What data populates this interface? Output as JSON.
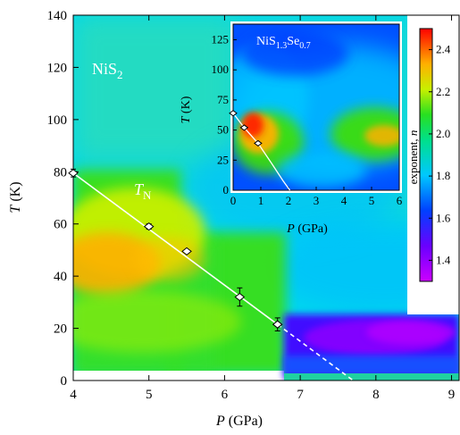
{
  "chart_data": [
    {
      "type": "heatmap",
      "title": "NiS2",
      "xlabel": "P  (GPa)",
      "ylabel": "T (K)",
      "xlim": [
        4,
        9.1
      ],
      "ylim": [
        0,
        140
      ],
      "xticks": [
        "4",
        "5",
        "6",
        "7",
        "8",
        "9"
      ],
      "yticks": [
        "0",
        "20",
        "40",
        "60",
        "80",
        "100",
        "120",
        "140"
      ],
      "annotation": "T_N",
      "series": [
        {
          "name": "T_N",
          "points": [
            {
              "x": 4.0,
              "y": 79.5,
              "err": 1.5
            },
            {
              "x": 5.0,
              "y": 59,
              "err": 1
            },
            {
              "x": 5.5,
              "y": 49.5,
              "err": 0.5
            },
            {
              "x": 6.2,
              "y": 32,
              "err": 3.5
            },
            {
              "x": 6.7,
              "y": 21.5,
              "err": 2.5
            }
          ]
        }
      ],
      "fit_line": {
        "x": [
          4.0,
          6.7
        ],
        "y": [
          79.5,
          21.5
        ]
      },
      "extrapolation": {
        "x": [
          6.7,
          7.7
        ],
        "y": [
          21.5,
          0
        ]
      },
      "grid": false
    },
    {
      "type": "heatmap",
      "title": "NiS1.3Se0.7",
      "xlabel": "P  (GPa)",
      "ylabel": "T (K)",
      "xlim": [
        0,
        6
      ],
      "ylim": [
        0,
        138
      ],
      "xticks": [
        "0",
        "1",
        "2",
        "3",
        "4",
        "5",
        "6"
      ],
      "yticks": [
        "0",
        "25",
        "50",
        "75",
        "100",
        "125"
      ],
      "series": [
        {
          "name": "T_N",
          "points": [
            {
              "x": 0.0,
              "y": 64,
              "err": 1
            },
            {
              "x": 0.4,
              "y": 52,
              "err": 1.5
            },
            {
              "x": 0.9,
              "y": 39,
              "err": 2.5
            }
          ]
        }
      ],
      "fit_curve": {
        "x": [
          0.0,
          0.4,
          0.9,
          1.4,
          1.8,
          2.05
        ],
        "y": [
          64,
          52,
          39,
          22,
          8,
          0
        ]
      }
    }
  ],
  "colorbar": {
    "label": "exponent, n",
    "range": [
      1.3,
      2.5
    ],
    "ticks": [
      "1.4",
      "1.6",
      "1.8",
      "2.0",
      "2.2",
      "2.4"
    ]
  },
  "labels": {
    "main_title_base": "NiS",
    "main_title_sub": "2",
    "tn_base": "T",
    "tn_sub": "N",
    "inset_title_a": "NiS",
    "inset_title_sub1": "1.3",
    "inset_title_b": "Se",
    "inset_title_sub2": "0.7",
    "x_italic": "P",
    "x_rest": "  (GPa)",
    "y_italic": "T",
    "y_rest": " (K)",
    "cb_text": "exponent, ",
    "cb_italic": "n"
  },
  "colors": {
    "background_low": "#00c8ff",
    "background_mid": "#00e0e0",
    "hot": "#ff2000",
    "warm": "#ff9a00",
    "cold": "#8800ff",
    "line": "#ffffff"
  }
}
